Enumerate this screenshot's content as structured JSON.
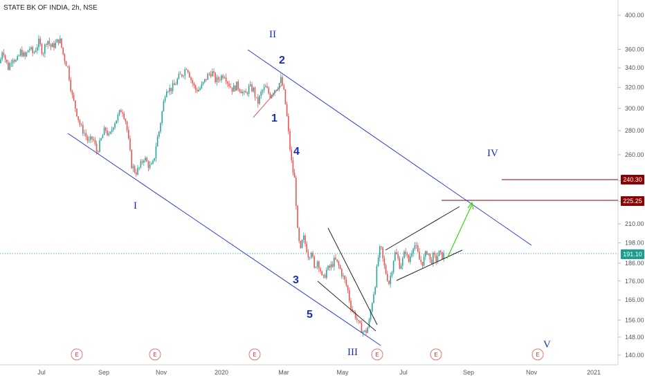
{
  "chart_data": {
    "type": "candlestick",
    "title": "STATE BK OF INDIA, 2h, NSE",
    "y_axis": {
      "ticks": [
        400,
        360,
        340,
        320,
        300,
        280,
        260,
        240,
        225,
        210,
        198,
        186,
        176,
        166,
        156,
        148,
        140
      ],
      "tick_labels": [
        "400.00",
        "360.00",
        "340.00",
        "320.00",
        "300.00",
        "280.00",
        "260.00",
        "240.00",
        "225.00",
        "210.00",
        "198.00",
        "186.00",
        "176.00",
        "166.00",
        "156.00",
        "148.00",
        "140.00"
      ]
    },
    "x_axis": {
      "tick_labels": [
        "Jul",
        "Sep",
        "Nov",
        "2020",
        "Mar",
        "May",
        "Jul",
        "Sep",
        "Nov",
        "2021"
      ]
    },
    "price_badges": [
      {
        "label": "240.30",
        "value": 240.3,
        "color": "#8b0000"
      },
      {
        "label": "225.25",
        "value": 225.25,
        "color": "#8b0000"
      },
      {
        "label": "191.10",
        "value": 191.1,
        "color": "#1a9e8f"
      }
    ],
    "wave_labels": {
      "major": [
        "I",
        "II",
        "III",
        "IV",
        "V"
      ],
      "minor": [
        "1",
        "2",
        "3",
        "4",
        "5"
      ]
    },
    "earnings_marker": "E",
    "colors": {
      "up": "#26a69a",
      "down": "#ef5350",
      "channel": "#2b3bd6",
      "target": "#8b0000",
      "arrow": "#33dd00",
      "current_price": "#1a9e8f"
    },
    "price_path": [
      [
        0,
        345
      ],
      [
        4,
        362
      ],
      [
        8,
        348
      ],
      [
        12,
        340
      ],
      [
        18,
        352
      ],
      [
        24,
        346
      ],
      [
        30,
        358
      ],
      [
        36,
        351
      ],
      [
        42,
        362
      ],
      [
        48,
        355
      ],
      [
        56,
        368
      ],
      [
        62,
        356
      ],
      [
        68,
        372
      ],
      [
        74,
        362
      ],
      [
        80,
        366
      ],
      [
        86,
        372
      ],
      [
        92,
        352
      ],
      [
        98,
        340
      ],
      [
        104,
        312
      ],
      [
        110,
        298
      ],
      [
        116,
        284
      ],
      [
        122,
        278
      ],
      [
        128,
        270
      ],
      [
        134,
        274
      ],
      [
        140,
        262
      ],
      [
        146,
        272
      ],
      [
        152,
        282
      ],
      [
        158,
        274
      ],
      [
        164,
        286
      ],
      [
        170,
        292
      ],
      [
        176,
        300
      ],
      [
        182,
        288
      ],
      [
        186,
        270
      ],
      [
        190,
        252
      ],
      [
        196,
        246
      ],
      [
        202,
        250
      ],
      [
        208,
        258
      ],
      [
        214,
        252
      ],
      [
        218,
        250
      ],
      [
        222,
        254
      ],
      [
        226,
        270
      ],
      [
        230,
        280
      ],
      [
        234,
        296
      ],
      [
        240,
        320
      ],
      [
        246,
        318
      ],
      [
        252,
        322
      ],
      [
        258,
        330
      ],
      [
        264,
        334
      ],
      [
        270,
        342
      ],
      [
        276,
        328
      ],
      [
        282,
        318
      ],
      [
        288,
        318
      ],
      [
        294,
        324
      ],
      [
        300,
        332
      ],
      [
        306,
        336
      ],
      [
        312,
        326
      ],
      [
        318,
        330
      ],
      [
        324,
        334
      ],
      [
        330,
        324
      ],
      [
        336,
        318
      ],
      [
        342,
        322
      ],
      [
        348,
        318
      ],
      [
        354,
        312
      ],
      [
        360,
        320
      ],
      [
        366,
        318
      ],
      [
        372,
        304
      ],
      [
        378,
        316
      ],
      [
        384,
        320
      ],
      [
        390,
        312
      ],
      [
        396,
        318
      ],
      [
        402,
        322
      ],
      [
        406,
        328
      ],
      [
        410,
        316
      ],
      [
        414,
        296
      ],
      [
        418,
        270
      ],
      [
        422,
        250
      ],
      [
        426,
        240
      ],
      [
        430,
        205
      ],
      [
        434,
        192
      ],
      [
        438,
        202
      ],
      [
        442,
        196
      ],
      [
        446,
        190
      ],
      [
        450,
        194
      ],
      [
        454,
        182
      ],
      [
        458,
        188
      ],
      [
        462,
        184
      ],
      [
        466,
        176
      ],
      [
        472,
        182
      ],
      [
        478,
        184
      ],
      [
        484,
        188
      ],
      [
        490,
        184
      ],
      [
        496,
        178
      ],
      [
        502,
        172
      ],
      [
        506,
        164
      ],
      [
        510,
        160
      ],
      [
        514,
        158
      ],
      [
        518,
        154
      ],
      [
        522,
        152
      ],
      [
        526,
        150
      ],
      [
        530,
        151
      ],
      [
        534,
        156
      ],
      [
        538,
        166
      ],
      [
        542,
        174
      ],
      [
        546,
        188
      ],
      [
        550,
        196
      ],
      [
        554,
        186
      ],
      [
        558,
        180
      ],
      [
        562,
        175
      ],
      [
        566,
        182
      ],
      [
        570,
        192
      ],
      [
        574,
        190
      ],
      [
        578,
        184
      ],
      [
        582,
        188
      ],
      [
        586,
        194
      ],
      [
        590,
        186
      ],
      [
        594,
        192
      ],
      [
        598,
        198
      ],
      [
        602,
        194
      ],
      [
        606,
        188
      ],
      [
        610,
        186
      ],
      [
        614,
        190
      ],
      [
        618,
        194
      ],
      [
        622,
        186
      ],
      [
        626,
        190
      ],
      [
        630,
        188
      ],
      [
        634,
        192
      ],
      [
        638,
        190
      ],
      [
        642,
        191
      ]
    ]
  }
}
